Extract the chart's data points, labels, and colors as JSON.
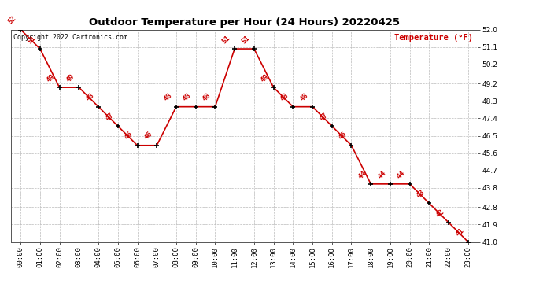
{
  "title": "Outdoor Temperature per Hour (24 Hours) 20220425",
  "copyright_text": "Copyright 2022 Cartronics.com",
  "legend_text": "Temperature (°F)",
  "hours": [
    0,
    1,
    2,
    3,
    4,
    5,
    6,
    7,
    8,
    9,
    10,
    11,
    12,
    13,
    14,
    15,
    16,
    17,
    18,
    19,
    20,
    21,
    22,
    23
  ],
  "hour_labels": [
    "00:00",
    "01:00",
    "02:00",
    "03:00",
    "04:00",
    "05:00",
    "06:00",
    "07:00",
    "08:00",
    "09:00",
    "10:00",
    "11:00",
    "12:00",
    "13:00",
    "14:00",
    "15:00",
    "16:00",
    "17:00",
    "18:00",
    "19:00",
    "20:00",
    "21:00",
    "22:00",
    "23:00"
  ],
  "temperatures": [
    52,
    51,
    49,
    49,
    48,
    47,
    46,
    46,
    48,
    48,
    48,
    51,
    51,
    49,
    48,
    48,
    47,
    46,
    44,
    44,
    44,
    43,
    42,
    41
  ],
  "line_color": "#cc0000",
  "marker_color": "#000000",
  "label_color": "#cc0000",
  "grid_color": "#bbbbbb",
  "background_color": "#ffffff",
  "title_fontsize": 9.5,
  "label_fontsize": 6.5,
  "tick_fontsize": 6.5,
  "copyright_fontsize": 6,
  "legend_fontsize": 7.5,
  "ylim_min": 41.0,
  "ylim_max": 52.0,
  "yticks": [
    41.0,
    41.9,
    42.8,
    43.8,
    44.7,
    45.6,
    46.5,
    47.4,
    48.3,
    49.2,
    50.2,
    51.1,
    52.0
  ]
}
